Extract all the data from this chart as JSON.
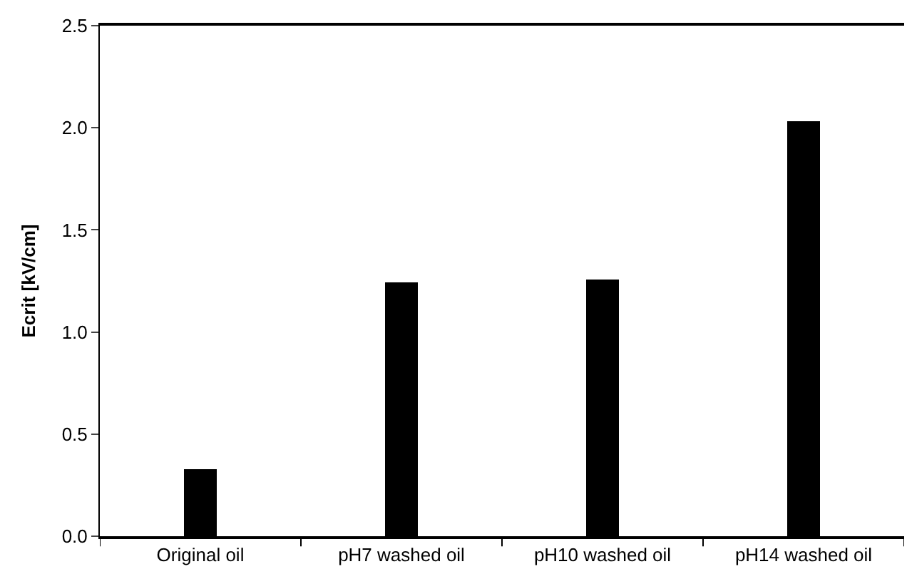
{
  "chart_data": {
    "type": "bar",
    "ylabel": "Ecrit [kV/cm]",
    "categories": [
      "Original oil",
      "pH7 washed oil",
      "pH10 washed oil",
      "pH14 washed oil"
    ],
    "values": [
      0.33,
      1.24,
      1.26,
      2.03
    ],
    "color": "#000000",
    "ylim": [
      0,
      2.5
    ],
    "yticks": [
      {
        "value": 0,
        "label": "0.0"
      },
      0.5,
      {
        "value": 1,
        "label": "1.0"
      },
      1.5,
      {
        "value": 2,
        "label": "2.0"
      },
      2.5
    ],
    "legend": false
  }
}
